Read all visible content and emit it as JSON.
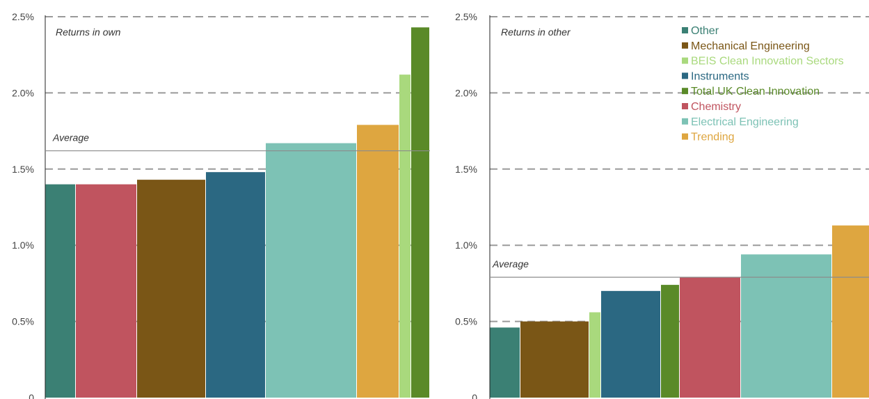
{
  "colors": {
    "Other": "#3b8074",
    "Chemistry": "#c0545f",
    "Mechanical Engineering": "#7a5616",
    "Instruments": "#2b6882",
    "Electrical Engineering": "#7dc2b5",
    "Trending": "#dea640",
    "BEIS Clean Innovation Sectors": "#a9d97d",
    "Total UK Clean Innovation": "#5a8a28"
  },
  "chart_data": [
    {
      "type": "bar",
      "variable_width": true,
      "annotation": "Returns in own",
      "average_label": "Average",
      "average": 1.62,
      "ylim": [
        0,
        2.5
      ],
      "y_ticks": [
        {
          "value": 0,
          "label": "0"
        },
        {
          "value": 0.5,
          "label": "0.5%"
        },
        {
          "value": 1.0,
          "label": "1.0%"
        },
        {
          "value": 1.5,
          "label": "1.5%"
        },
        {
          "value": 2.0,
          "label": "2.0%"
        },
        {
          "value": 2.5,
          "label": "2.5%"
        }
      ],
      "categories": [
        "Other",
        "Chemistry",
        "Mechanical Engineering",
        "Instruments",
        "Electrical Engineering",
        "Trending",
        "BEIS Clean Innovation Sectors",
        "Total UK Clean Innovation"
      ],
      "values": [
        1.4,
        1.4,
        1.43,
        1.48,
        1.67,
        1.79,
        2.12,
        2.43
      ],
      "widths": [
        44,
        88,
        99,
        86,
        131,
        61,
        17,
        27
      ]
    },
    {
      "type": "bar",
      "variable_width": true,
      "annotation": "Returns in other",
      "average_label": "Average",
      "average": 0.79,
      "ylim": [
        0,
        2.5
      ],
      "y_ticks": [
        {
          "value": 0,
          "label": "0"
        },
        {
          "value": 0.5,
          "label": "0.5%"
        },
        {
          "value": 1.0,
          "label": "1.0%"
        },
        {
          "value": 1.5,
          "label": "1.5%"
        },
        {
          "value": 2.0,
          "label": "2.0%"
        },
        {
          "value": 2.5,
          "label": "2.5%"
        }
      ],
      "categories": [
        "Other",
        "Mechanical Engineering",
        "BEIS Clean Innovation Sectors",
        "Instruments",
        "Total UK Clean Innovation",
        "Chemistry",
        "Electrical Engineering",
        "Trending"
      ],
      "values": [
        0.46,
        0.5,
        0.56,
        0.7,
        0.74,
        0.79,
        0.94,
        1.13
      ],
      "widths": [
        44,
        99,
        17,
        86,
        27,
        88,
        131,
        61
      ],
      "legend": [
        "Other",
        "Mechanical Engineering",
        "BEIS Clean Innovation Sectors",
        "Instruments",
        "Total UK Clean Innovation",
        "Chemistry",
        "Electrical Engineering",
        "Trending"
      ],
      "legend_position": "top-right"
    }
  ]
}
